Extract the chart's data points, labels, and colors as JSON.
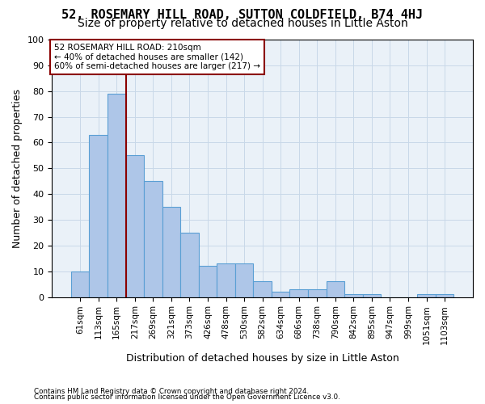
{
  "title": "52, ROSEMARY HILL ROAD, SUTTON COLDFIELD, B74 4HJ",
  "subtitle": "Size of property relative to detached houses in Little Aston",
  "xlabel": "Distribution of detached houses by size in Little Aston",
  "ylabel": "Number of detached properties",
  "footnote1": "Contains HM Land Registry data © Crown copyright and database right 2024.",
  "footnote2": "Contains public sector information licensed under the Open Government Licence v3.0.",
  "annotation_line1": "52 ROSEMARY HILL ROAD: 210sqm",
  "annotation_line2": "← 40% of detached houses are smaller (142)",
  "annotation_line3": "60% of semi-detached houses are larger (217) →",
  "bar_values": [
    10,
    63,
    79,
    55,
    45,
    35,
    25,
    12,
    13,
    13,
    6,
    2,
    3,
    3,
    6,
    1,
    1,
    0,
    0,
    1,
    1
  ],
  "x_labels": [
    "61sqm",
    "113sqm",
    "165sqm",
    "217sqm",
    "269sqm",
    "321sqm",
    "373sqm",
    "426sqm",
    "478sqm",
    "530sqm",
    "582sqm",
    "634sqm",
    "686sqm",
    "738sqm",
    "790sqm",
    "842sqm",
    "895sqm",
    "947sqm",
    "999sqm",
    "1051sqm",
    "1103sqm"
  ],
  "bar_color": "#aec6e8",
  "bar_edge_color": "#5a9fd4",
  "vline_color": "#8b0000",
  "annotation_box_edge": "#8b0000",
  "ylim": [
    0,
    100
  ],
  "yticks": [
    0,
    10,
    20,
    30,
    40,
    50,
    60,
    70,
    80,
    90,
    100
  ],
  "grid_color": "#c8d8e8",
  "bg_color": "#eaf1f8",
  "title_fontsize": 11,
  "subtitle_fontsize": 10,
  "xlabel_fontsize": 9,
  "ylabel_fontsize": 9
}
